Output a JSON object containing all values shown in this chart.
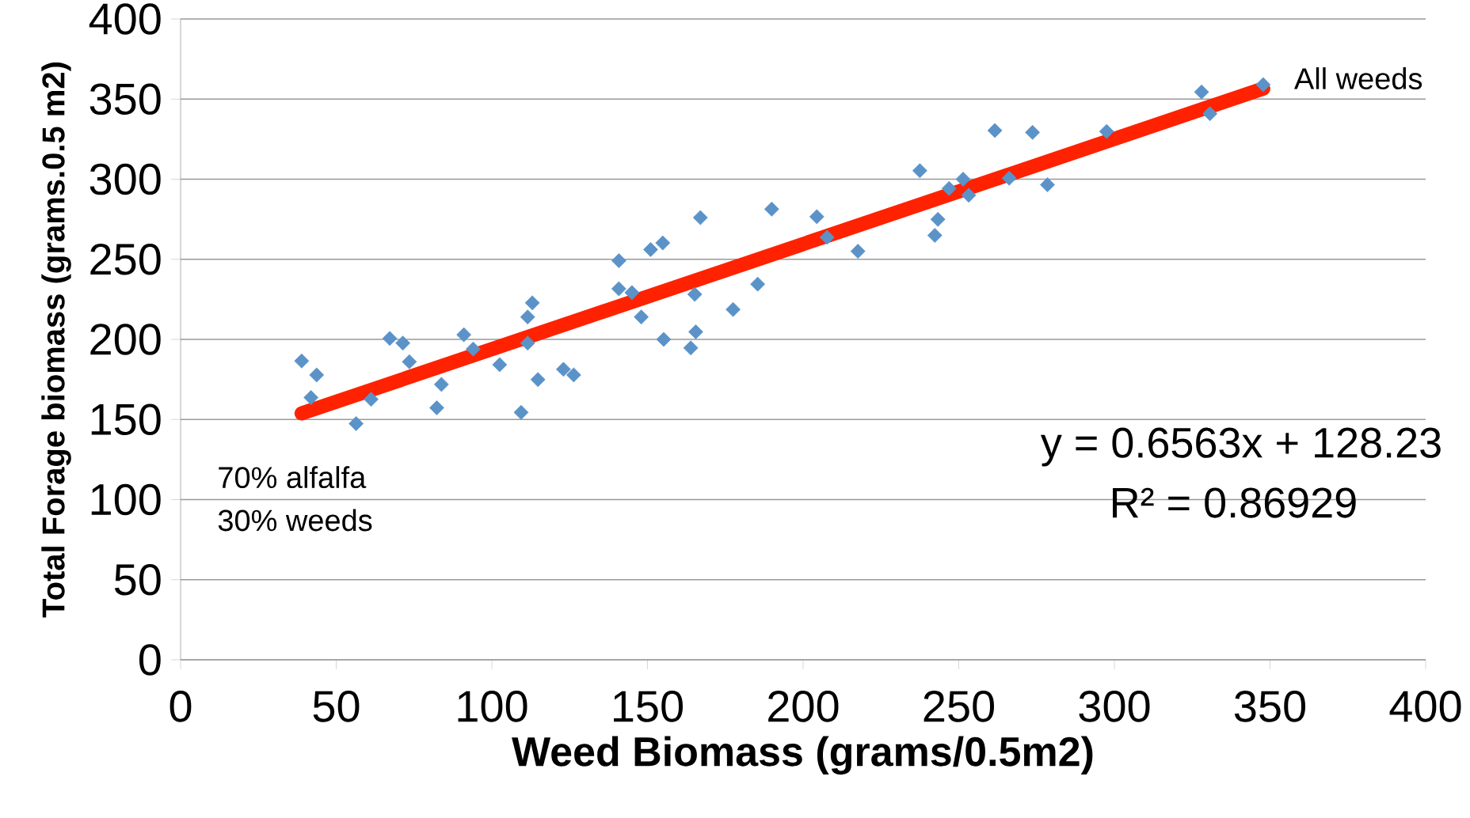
{
  "chart_data": {
    "type": "scatter",
    "xlabel": "Weed Biomass (grams/0.5m2)",
    "ylabel": "Total Forage biomass (grams.0.5 m2)",
    "xlim": [
      0,
      400
    ],
    "ylim": [
      0,
      400
    ],
    "xticks": [
      0,
      50,
      100,
      150,
      200,
      250,
      300,
      350,
      400
    ],
    "yticks": [
      0,
      50,
      100,
      150,
      200,
      250,
      300,
      350,
      400
    ],
    "grid": "y",
    "marker": "diamond",
    "series": [
      {
        "color": "#5b93c9",
        "x": [
          38.9,
          41.9,
          43.7,
          56.4,
          61.2,
          67.2,
          71.4,
          73.5,
          82.3,
          83.8,
          91.0,
          94.0,
          102.5,
          109.4,
          111.5,
          113.0,
          111.5,
          114.8,
          123.0,
          126.3,
          140.8,
          140.8,
          145.0,
          148.0,
          151.0,
          154.9,
          155.2,
          163.9,
          165.2,
          165.5,
          167.0,
          177.5,
          185.4,
          189.9,
          204.4,
          207.7,
          217.6,
          237.5,
          242.3,
          243.3,
          246.9,
          251.4,
          253.2,
          261.6,
          266.2,
          273.7,
          278.5,
          297.5,
          328.0,
          330.7,
          347.8
        ],
        "values": [
          186.5,
          163.7,
          177.8,
          147.4,
          162.6,
          200.6,
          197.7,
          186.0,
          157.3,
          171.9,
          202.9,
          194.0,
          184.2,
          154.4,
          214.0,
          222.8,
          197.7,
          174.9,
          181.3,
          177.8,
          249.1,
          231.6,
          229.2,
          214.0,
          256.1,
          260.2,
          200.0,
          194.7,
          228.1,
          204.7,
          276.0,
          218.7,
          234.5,
          281.3,
          276.6,
          263.7,
          255.0,
          305.3,
          264.9,
          274.9,
          294.2,
          300.0,
          290.0,
          330.4,
          300.6,
          329.2,
          296.5,
          329.8,
          354.4,
          340.9,
          359.0
        ]
      },
      {
        "type": "line",
        "color": "#ff2200",
        "marker": "none",
        "x": [
          38.9,
          347.8
        ],
        "values": [
          153.8,
          356.5
        ]
      }
    ],
    "annotations": [
      {
        "text": "All weeds",
        "x": 347.8,
        "y": 359.0
      },
      "70% alfalfa",
      "30% weeds",
      "y = 0.6563x + 128.23",
      "R² = 0.86929"
    ]
  }
}
